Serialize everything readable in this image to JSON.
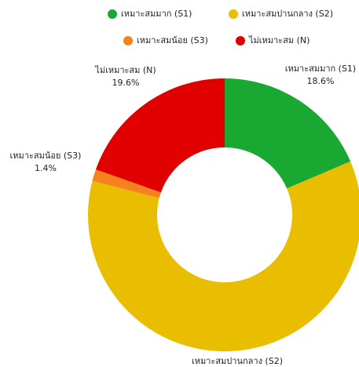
{
  "chart_data": {
    "type": "donut",
    "categories": [
      "เหมาะสมมาก (S1)",
      "เหมาะสมปานกลาง (S2)",
      "เหมาะสมน้อย (S3)",
      "ไม่เหมาะสม (N)"
    ],
    "values": [
      18.6,
      60.4,
      1.4,
      19.6
    ],
    "value_labels": [
      "18.6%",
      null,
      "1.4%",
      "19.6%"
    ],
    "colors": [
      "#19a832",
      "#e9bd00",
      "#f5821f",
      "#e00000"
    ]
  }
}
